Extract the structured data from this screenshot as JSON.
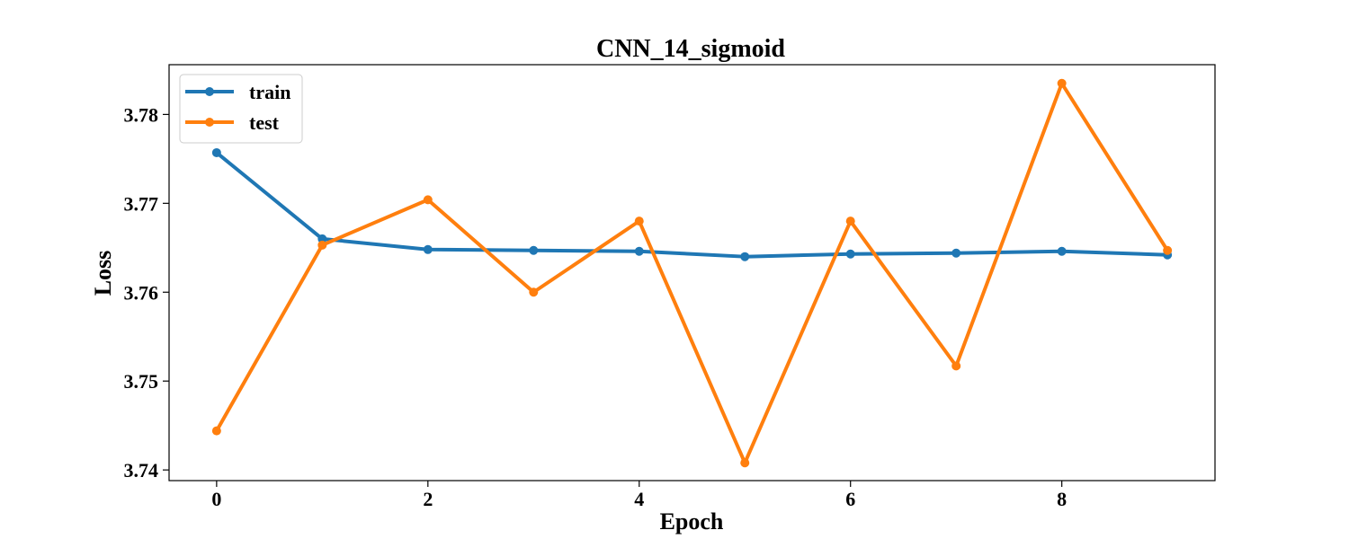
{
  "chart_data": {
    "type": "line",
    "title": "CNN_14_sigmoid",
    "xlabel": "Epoch",
    "ylabel": "Loss",
    "x": [
      0,
      1,
      2,
      3,
      4,
      5,
      6,
      7,
      8,
      9
    ],
    "xlim": [
      -0.45,
      9.45
    ],
    "ylim": [
      3.7388,
      3.7856
    ],
    "xticks": [
      0,
      2,
      4,
      6,
      8
    ],
    "xtick_labels": [
      "0",
      "2",
      "4",
      "6",
      "8"
    ],
    "yticks": [
      3.74,
      3.75,
      3.76,
      3.77,
      3.78
    ],
    "ytick_labels": [
      "3.74",
      "3.75",
      "3.76",
      "3.77",
      "3.78"
    ],
    "grid": false,
    "legend_position": "top-left",
    "series": [
      {
        "name": "train",
        "color": "#1f77b4",
        "values": [
          3.7757,
          3.766,
          3.7648,
          3.7647,
          3.7646,
          3.764,
          3.7643,
          3.7644,
          3.7646,
          3.7642
        ]
      },
      {
        "name": "test",
        "color": "#ff7f0e",
        "values": [
          3.7444,
          3.7653,
          3.7704,
          3.76,
          3.768,
          3.7408,
          3.768,
          3.7517,
          3.7835,
          3.7647
        ]
      }
    ]
  }
}
